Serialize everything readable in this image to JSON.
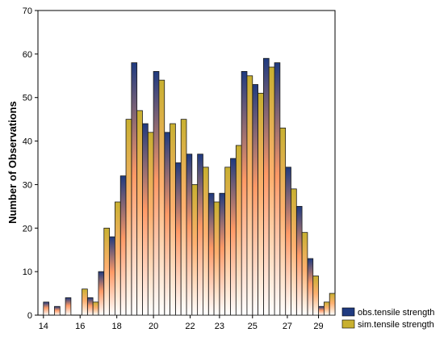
{
  "chart_data": {
    "type": "bar",
    "title": "",
    "xlabel": "",
    "ylabel": "Number of Observations",
    "xlim": [
      13.7,
      29.9
    ],
    "ylim": [
      0,
      70
    ],
    "x_ticks": [
      "14",
      "16",
      "18",
      "20",
      "22",
      "23",
      "25",
      "27",
      "29"
    ],
    "y_ticks": [
      "0",
      "10",
      "20",
      "30",
      "40",
      "50",
      "60",
      "70"
    ],
    "grid": false,
    "legend_position": "bottom-right",
    "bin_width": 0.3,
    "series": [
      {
        "name": "obs.tensile strength",
        "color_top": "#1f3a80",
        "color_bottom": "#ffffff",
        "x": [
          14.15,
          14.75,
          15.35,
          16.55,
          17.15,
          17.75,
          18.35,
          18.95,
          19.55,
          20.15,
          20.75,
          21.35,
          21.95,
          22.55,
          23.15,
          23.75,
          24.35,
          24.95,
          25.55,
          26.15,
          26.75,
          27.35,
          27.95,
          28.55,
          29.15
        ],
        "values": [
          3,
          2,
          4,
          4,
          10,
          18,
          32,
          58,
          44,
          56,
          42,
          35,
          37,
          37,
          28,
          28,
          36,
          56,
          53,
          59,
          58,
          34,
          25,
          13,
          2
        ]
      },
      {
        "name": "sim.tensile strength",
        "color_top": "#c8b030",
        "color_bottom": "#ffffff",
        "x": [
          14.45,
          15.05,
          15.65,
          16.25,
          16.85,
          17.45,
          18.05,
          18.65,
          19.25,
          19.85,
          20.45,
          21.05,
          21.65,
          22.25,
          22.85,
          23.45,
          24.05,
          24.65,
          25.25,
          25.85,
          26.45,
          27.05,
          27.65,
          28.25,
          28.85,
          29.45
        ],
        "values": [
          0,
          0,
          0,
          6,
          3,
          20,
          26,
          45,
          47,
          42,
          54,
          44,
          45,
          30,
          34,
          26,
          34,
          39,
          55,
          51,
          57,
          43,
          29,
          19,
          9,
          3
        ]
      },
      {
        "name": "",
        "color_top": "#c8b030",
        "color_bottom": "#ffffff",
        "x": [
          29.75
        ],
        "values": [
          5
        ]
      }
    ]
  }
}
